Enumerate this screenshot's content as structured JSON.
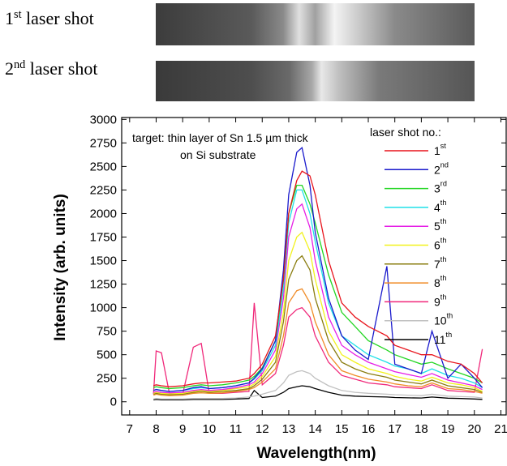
{
  "images": [
    {
      "label": "1st laser shot"
    },
    {
      "label": "2nd laser shot"
    }
  ],
  "chart_data": {
    "type": "line",
    "xlabel": "Wavelength(nm)",
    "ylabel": "Intensity (arb. units)",
    "annotation": [
      "target: thin layer of Sn 1.5 µm thick",
      "on Si substrate"
    ],
    "legend_title": "laser shot no.:",
    "legend_position": "upper right",
    "xlim": [
      6.7,
      21.2
    ],
    "xticks": [
      7,
      8,
      9,
      10,
      11,
      12,
      13,
      14,
      15,
      16,
      17,
      18,
      19,
      20,
      21
    ],
    "ylim": [
      -140,
      3020
    ],
    "yticks": [
      0,
      250,
      500,
      750,
      1000,
      1250,
      1500,
      1750,
      2000,
      2250,
      2500,
      2750,
      3000
    ],
    "x": [
      7.9,
      8.0,
      8.2,
      8.5,
      9.0,
      9.4,
      9.7,
      10.0,
      10.5,
      11.0,
      11.5,
      11.7,
      12.0,
      12.5,
      12.8,
      13.0,
      13.3,
      13.5,
      13.8,
      14.0,
      14.5,
      15.0,
      15.5,
      16.0,
      16.7,
      17.0,
      17.5,
      18.0,
      18.4,
      19.0,
      19.5,
      20.0,
      20.3
    ],
    "series": [
      {
        "name": "1st",
        "color": "#e8141c",
        "values": [
          170,
          180,
          170,
          160,
          170,
          190,
          200,
          200,
          210,
          220,
          250,
          300,
          400,
          700,
          1300,
          2000,
          2350,
          2450,
          2400,
          2200,
          1500,
          1050,
          900,
          800,
          700,
          600,
          550,
          500,
          500,
          430,
          400,
          300,
          200
        ]
      },
      {
        "name": "2nd",
        "color": "#1a1acc",
        "values": [
          120,
          130,
          120,
          110,
          120,
          150,
          160,
          140,
          150,
          170,
          200,
          250,
          350,
          650,
          1400,
          2200,
          2650,
          2700,
          2300,
          1800,
          1100,
          700,
          550,
          450,
          1440,
          400,
          350,
          300,
          750,
          250,
          400,
          250,
          150
        ]
      },
      {
        "name": "3rd",
        "color": "#22d622",
        "values": [
          150,
          160,
          150,
          140,
          150,
          170,
          180,
          170,
          180,
          200,
          230,
          270,
          360,
          650,
          1300,
          2000,
          2300,
          2300,
          2100,
          1900,
          1350,
          950,
          800,
          650,
          550,
          500,
          450,
          400,
          420,
          350,
          300,
          250,
          200
        ]
      },
      {
        "name": "4th",
        "color": "#1ee0e8",
        "values": [
          120,
          130,
          120,
          110,
          120,
          140,
          150,
          140,
          150,
          170,
          200,
          240,
          330,
          600,
          1200,
          1900,
          2250,
          2250,
          2000,
          1700,
          1050,
          700,
          600,
          500,
          420,
          380,
          350,
          300,
          350,
          280,
          250,
          200,
          150
        ]
      },
      {
        "name": "5th",
        "color": "#e61ee6",
        "values": [
          100,
          110,
          100,
          95,
          100,
          120,
          130,
          120,
          130,
          150,
          180,
          210,
          300,
          550,
          1100,
          1750,
          2050,
          2100,
          1850,
          1500,
          900,
          600,
          500,
          420,
          350,
          320,
          290,
          260,
          300,
          230,
          200,
          170,
          130
        ]
      },
      {
        "name": "6th",
        "color": "#f2f21e",
        "values": [
          90,
          100,
          90,
          85,
          90,
          110,
          120,
          110,
          120,
          140,
          160,
          190,
          270,
          480,
          950,
          1500,
          1750,
          1800,
          1600,
          1300,
          750,
          500,
          420,
          350,
          300,
          270,
          240,
          220,
          260,
          200,
          180,
          150,
          110
        ]
      },
      {
        "name": "7th",
        "color": "#8a7d10",
        "values": [
          80,
          90,
          80,
          75,
          80,
          100,
          110,
          100,
          110,
          120,
          140,
          170,
          240,
          420,
          850,
          1300,
          1500,
          1550,
          1400,
          1100,
          650,
          420,
          350,
          300,
          260,
          230,
          210,
          190,
          230,
          170,
          150,
          130,
          100
        ]
      },
      {
        "name": "8th",
        "color": "#f08c28",
        "values": [
          70,
          80,
          70,
          65,
          70,
          90,
          95,
          90,
          95,
          110,
          130,
          150,
          210,
          350,
          700,
          1050,
          1180,
          1200,
          1050,
          850,
          500,
          330,
          280,
          240,
          210,
          190,
          170,
          160,
          200,
          140,
          130,
          110,
          90
        ]
      },
      {
        "name": "9th",
        "color": "#f0287a",
        "values": [
          80,
          540,
          520,
          90,
          80,
          580,
          620,
          90,
          90,
          100,
          110,
          1050,
          180,
          300,
          600,
          900,
          980,
          1000,
          900,
          700,
          420,
          280,
          240,
          200,
          180,
          160,
          150,
          140,
          180,
          120,
          110,
          100,
          560
        ]
      },
      {
        "name": "10th",
        "color": "#c0c0c0",
        "values": [
          30,
          35,
          30,
          30,
          30,
          35,
          35,
          35,
          35,
          40,
          50,
          60,
          80,
          120,
          200,
          280,
          320,
          330,
          300,
          250,
          170,
          120,
          100,
          90,
          80,
          75,
          70,
          65,
          80,
          60,
          55,
          50,
          40
        ]
      },
      {
        "name": "11th",
        "color": "#000000",
        "values": [
          20,
          25,
          20,
          20,
          20,
          25,
          25,
          25,
          25,
          30,
          35,
          120,
          45,
          60,
          100,
          140,
          160,
          170,
          160,
          140,
          100,
          70,
          60,
          55,
          50,
          45,
          42,
          40,
          50,
          38,
          35,
          30,
          25
        ]
      }
    ]
  }
}
